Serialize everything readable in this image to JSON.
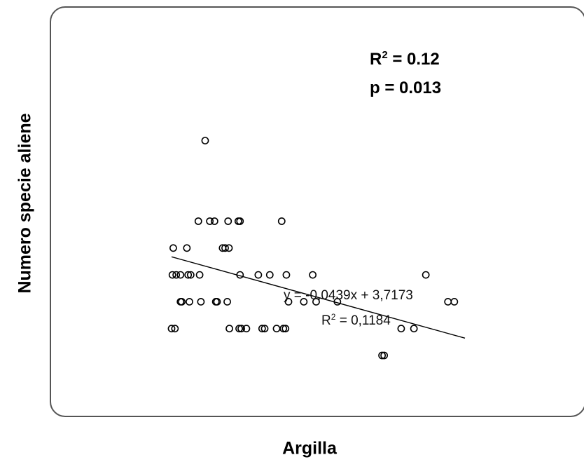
{
  "chart_data": {
    "type": "scatter",
    "xlabel": "Argilla",
    "ylabel": "Numero specie aliene",
    "annotations": {
      "r2_label": "R",
      "r2_exp": "2",
      "r2_value": " = 0.12",
      "p_text": "p = 0.013",
      "equation": "y = -0,0439x + 3,7173",
      "trend_r2_label": "R",
      "trend_r2_exp": "2",
      "trend_r2_value": " = 0,1184"
    },
    "trendline": {
      "slope": -0.0439,
      "intercept": 3.7173
    },
    "x_range": [
      1,
      70
    ],
    "y_range": [
      0,
      10
    ],
    "marker_color": "#000000",
    "line_color": "#000000",
    "points": [
      {
        "x": 8.9,
        "y": 8
      },
      {
        "x": 7.3,
        "y": 5
      },
      {
        "x": 10.0,
        "y": 5
      },
      {
        "x": 11.1,
        "y": 5
      },
      {
        "x": 14.3,
        "y": 5
      },
      {
        "x": 16.7,
        "y": 5
      },
      {
        "x": 17.1,
        "y": 5
      },
      {
        "x": 26.9,
        "y": 5
      },
      {
        "x": 1.4,
        "y": 4
      },
      {
        "x": 4.6,
        "y": 4
      },
      {
        "x": 13.0,
        "y": 4
      },
      {
        "x": 13.6,
        "y": 4
      },
      {
        "x": 14.5,
        "y": 4
      },
      {
        "x": 3.1,
        "y": 3
      },
      {
        "x": 1.2,
        "y": 3
      },
      {
        "x": 2.1,
        "y": 3
      },
      {
        "x": 4.9,
        "y": 3
      },
      {
        "x": 5.5,
        "y": 3
      },
      {
        "x": 7.6,
        "y": 3
      },
      {
        "x": 17.1,
        "y": 3
      },
      {
        "x": 21.4,
        "y": 3
      },
      {
        "x": 24.1,
        "y": 3
      },
      {
        "x": 28.0,
        "y": 3
      },
      {
        "x": 34.2,
        "y": 3
      },
      {
        "x": 60.8,
        "y": 3
      },
      {
        "x": 3.1,
        "y": 2
      },
      {
        "x": 3.4,
        "y": 2
      },
      {
        "x": 5.2,
        "y": 2
      },
      {
        "x": 7.9,
        "y": 2
      },
      {
        "x": 11.4,
        "y": 2
      },
      {
        "x": 11.7,
        "y": 2
      },
      {
        "x": 14.1,
        "y": 2
      },
      {
        "x": 28.5,
        "y": 2
      },
      {
        "x": 32.1,
        "y": 2
      },
      {
        "x": 35.0,
        "y": 2
      },
      {
        "x": 40.0,
        "y": 2
      },
      {
        "x": 66.0,
        "y": 2
      },
      {
        "x": 67.5,
        "y": 2
      },
      {
        "x": 1.0,
        "y": 1
      },
      {
        "x": 1.8,
        "y": 1
      },
      {
        "x": 14.6,
        "y": 1
      },
      {
        "x": 16.9,
        "y": 1
      },
      {
        "x": 17.4,
        "y": 1
      },
      {
        "x": 18.6,
        "y": 1
      },
      {
        "x": 22.3,
        "y": 1
      },
      {
        "x": 22.9,
        "y": 1
      },
      {
        "x": 25.7,
        "y": 1
      },
      {
        "x": 27.3,
        "y": 1
      },
      {
        "x": 27.8,
        "y": 1
      },
      {
        "x": 55.0,
        "y": 1
      },
      {
        "x": 58.0,
        "y": 1
      },
      {
        "x": 50.5,
        "y": 0
      },
      {
        "x": 51.0,
        "y": 0
      }
    ]
  }
}
